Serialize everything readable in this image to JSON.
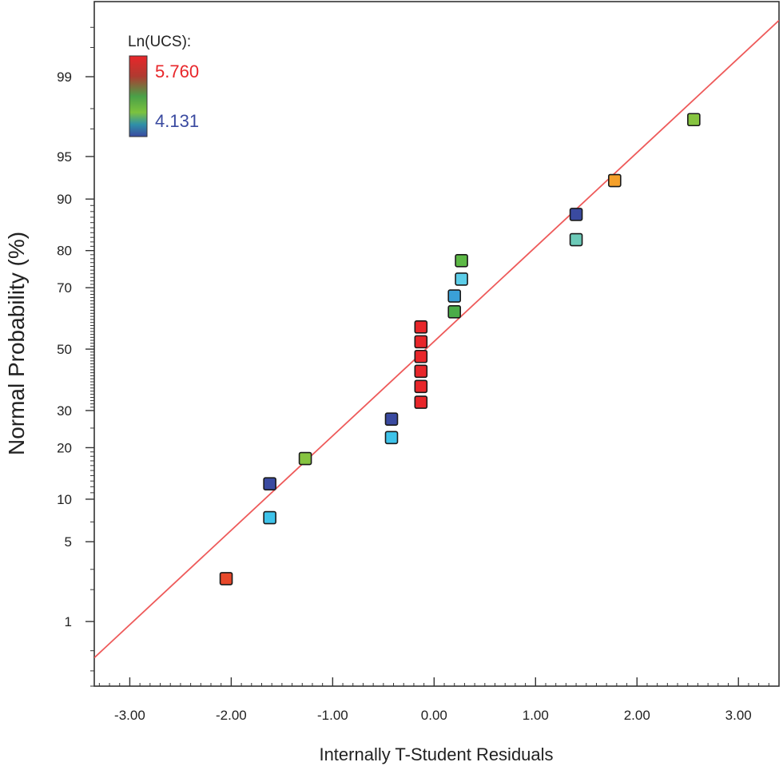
{
  "chart_data": {
    "type": "scatter",
    "title": "",
    "xlabel": "Internally T-Student Residuals",
    "ylabel": "Normal Probability (%)",
    "xlim": [
      -3.35,
      3.4
    ],
    "ylim_probability_percent": [
      0.2,
      99.85
    ],
    "scale": "normal-probability",
    "x_ticks": [
      -3.0,
      -2.0,
      -1.0,
      0.0,
      1.0,
      2.0,
      3.0
    ],
    "x_tick_labels": [
      "-3.00",
      "-2.00",
      "-1.00",
      "0.00",
      "1.00",
      "2.00",
      "3.00"
    ],
    "y_ticks": [
      1,
      5,
      10,
      20,
      30,
      50,
      70,
      80,
      90,
      95,
      99
    ],
    "y_tick_labels": [
      "1",
      "5",
      "10",
      "20",
      "30",
      "50",
      "70",
      "80",
      "90",
      "95",
      "99"
    ],
    "reference_line": {
      "color": "#ee5a5a",
      "points": [
        {
          "x": -3.35,
          "p": 0.42
        },
        {
          "x": 3.4,
          "p": 99.75
        }
      ]
    },
    "legend": {
      "title": "Ln(UCS):",
      "max_label": "5.760",
      "min_label": "4.131",
      "max_color": "#e8262a",
      "min_color": "#3a4aa0",
      "placement": "top-left"
    },
    "points": [
      {
        "x": -2.05,
        "p": 2.5,
        "color": "#e8482a"
      },
      {
        "x": -1.62,
        "p": 7.5,
        "color": "#3ec3ea"
      },
      {
        "x": -1.62,
        "p": 12.5,
        "color": "#3a4aa0"
      },
      {
        "x": -1.27,
        "p": 17.5,
        "color": "#86c440"
      },
      {
        "x": -0.42,
        "p": 22.5,
        "color": "#3ec3ea"
      },
      {
        "x": -0.42,
        "p": 27.5,
        "color": "#3a4aa0"
      },
      {
        "x": -0.13,
        "p": 32.5,
        "color": "#e8262a"
      },
      {
        "x": -0.13,
        "p": 37.5,
        "color": "#e8262a"
      },
      {
        "x": -0.13,
        "p": 42.5,
        "color": "#e8262a"
      },
      {
        "x": -0.13,
        "p": 47.5,
        "color": "#e8262a"
      },
      {
        "x": -0.13,
        "p": 52.5,
        "color": "#e8262a"
      },
      {
        "x": -0.13,
        "p": 57.5,
        "color": "#e8262a"
      },
      {
        "x": 0.2,
        "p": 62.5,
        "color": "#4aac48"
      },
      {
        "x": 0.2,
        "p": 67.5,
        "color": "#3aa0d8"
      },
      {
        "x": 0.27,
        "p": 72.5,
        "color": "#5ccde8"
      },
      {
        "x": 0.27,
        "p": 77.5,
        "color": "#5cb845"
      },
      {
        "x": 1.4,
        "p": 82.5,
        "color": "#6ccab8"
      },
      {
        "x": 1.4,
        "p": 87.5,
        "color": "#3a4aa0"
      },
      {
        "x": 1.78,
        "p": 92.5,
        "color": "#f5a02a"
      },
      {
        "x": 2.56,
        "p": 97.5,
        "color": "#86c440"
      }
    ]
  }
}
